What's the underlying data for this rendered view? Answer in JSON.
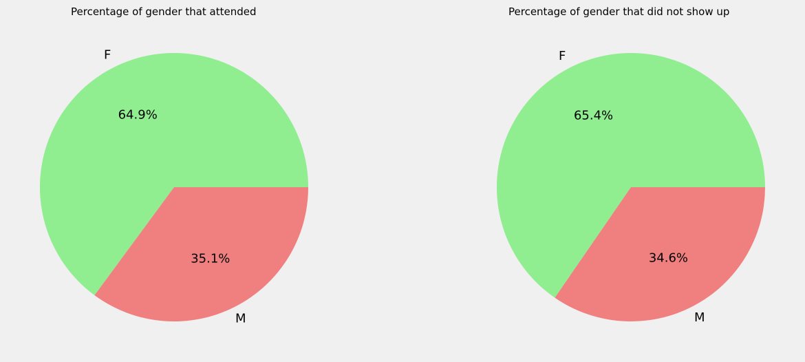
{
  "chart_data": [
    {
      "type": "pie",
      "title": "Percentage of gender that attended",
      "labels": [
        "F",
        "M"
      ],
      "values": [
        64.9,
        35.1
      ],
      "value_labels": [
        "64.9%",
        "35.1%"
      ],
      "colors": [
        "#90ee90",
        "#f08080"
      ],
      "start_angle": 0,
      "direction": "counterclockwise",
      "legend": "none"
    },
    {
      "type": "pie",
      "title": "Percentage of gender that did not show up",
      "labels": [
        "F",
        "M"
      ],
      "values": [
        65.4,
        34.6
      ],
      "value_labels": [
        "65.4%",
        "34.6%"
      ],
      "colors": [
        "#90ee90",
        "#f08080"
      ],
      "start_angle": 0,
      "direction": "counterclockwise",
      "legend": "none"
    }
  ]
}
